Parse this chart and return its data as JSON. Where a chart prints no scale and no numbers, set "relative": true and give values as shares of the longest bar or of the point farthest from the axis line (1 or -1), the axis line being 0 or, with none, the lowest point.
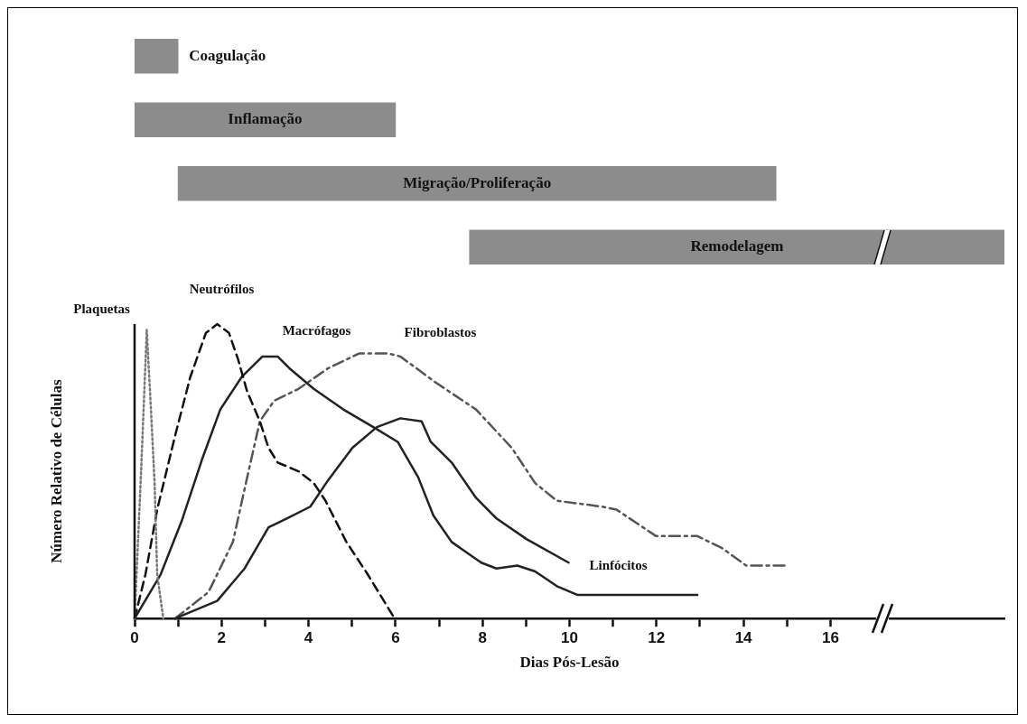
{
  "chart_data": [
    {
      "type": "bar",
      "orientation": "horizontal",
      "categories": [
        "Coagulação",
        "Inflamação",
        "Migração/Proliferação",
        "Remodelagem"
      ],
      "base": [
        0,
        0,
        1,
        7.7
      ],
      "values": [
        1,
        6,
        13.75,
        12.3
      ],
      "color": "#8c8c8c",
      "xlim": [
        0,
        20
      ],
      "tick_labels": false
    },
    {
      "type": "line",
      "relative": true,
      "xlabel": "Dias Pós-Lesão",
      "ylabel": "Número Relativo de Células",
      "xlim": [
        0,
        20
      ],
      "xticks": [
        0,
        {
          "value": 1,
          "label": null
        },
        2,
        {
          "value": 3,
          "label": null
        },
        4,
        {
          "value": 5,
          "label": null
        },
        6,
        {
          "value": 7,
          "label": null
        },
        8,
        {
          "value": 9,
          "label": null
        },
        10,
        {
          "value": 11,
          "label": null
        },
        12,
        {
          "value": 13,
          "label": null
        },
        14,
        {
          "value": 15,
          "label": null
        },
        16
      ],
      "tick_labels": "x",
      "marker": "none",
      "series": [
        {
          "name": "Plaquetas",
          "color": "#777777",
          "line_style": "dotted",
          "x": [
            0,
            0.15,
            0.28,
            0.38,
            0.46,
            0.52,
            0.66
          ],
          "values": [
            0,
            0.5,
            0.98,
            0.7,
            0.46,
            0.15,
            0
          ]
        },
        {
          "name": "Neutrófilos",
          "color": "#111111",
          "line_style": "dashed",
          "x": [
            0,
            0.25,
            0.52,
            0.93,
            1.28,
            1.64,
            1.9,
            2.17,
            2.38,
            2.59,
            2.88,
            3.08,
            3.29,
            3.77,
            4.12,
            4.39,
            4.87,
            5.36,
            5.98
          ],
          "values": [
            0,
            0.15,
            0.37,
            0.62,
            0.82,
            0.97,
            1,
            0.97,
            0.88,
            0.77,
            0.67,
            0.58,
            0.53,
            0.5,
            0.46,
            0.4,
            0.26,
            0.15,
            0
          ]
        },
        {
          "name": "Macrófagos",
          "color": "#222222",
          "line_style": "solid",
          "x": [
            0,
            0.6,
            1.08,
            1.55,
            1.97,
            2.46,
            2.94,
            3.29,
            3.56,
            4.12,
            4.8,
            5.49,
            6.05,
            6.52,
            6.87,
            7.29,
            7.97,
            8.32,
            8.8,
            9.21,
            9.71,
            10.19,
            12.94
          ],
          "values": [
            0,
            0.15,
            0.33,
            0.54,
            0.71,
            0.82,
            0.89,
            0.89,
            0.85,
            0.78,
            0.71,
            0.65,
            0.6,
            0.48,
            0.35,
            0.26,
            0.19,
            0.17,
            0.18,
            0.16,
            0.11,
            0.08,
            0.08
          ]
        },
        {
          "name": "Linfócitos",
          "color": "#222222",
          "line_style": "solid",
          "x": [
            0.93,
            1.9,
            2.53,
            3.08,
            3.5,
            4.04,
            4.45,
            5.01,
            5.57,
            6.11,
            6.6,
            6.81,
            7.29,
            7.85,
            8.32,
            9.01,
            9.98
          ],
          "values": [
            0,
            0.06,
            0.17,
            0.31,
            0.34,
            0.38,
            0.47,
            0.58,
            0.65,
            0.68,
            0.67,
            0.6,
            0.53,
            0.41,
            0.34,
            0.27,
            0.19
          ]
        },
        {
          "name": "Fibroblastos",
          "color": "#555555",
          "line_style": "dashdot",
          "x": [
            0.93,
            1.7,
            2.26,
            2.59,
            2.88,
            3.21,
            3.77,
            4.45,
            5.16,
            5.84,
            6.11,
            6.94,
            7.85,
            8.67,
            9.21,
            9.71,
            10.75,
            11.08,
            11.99,
            12.94,
            13.5,
            14.06,
            15.0
          ],
          "values": [
            0,
            0.09,
            0.26,
            0.48,
            0.67,
            0.74,
            0.78,
            0.85,
            0.9,
            0.9,
            0.89,
            0.8,
            0.71,
            0.58,
            0.46,
            0.4,
            0.38,
            0.37,
            0.28,
            0.28,
            0.24,
            0.18,
            0.18
          ]
        }
      ]
    }
  ]
}
